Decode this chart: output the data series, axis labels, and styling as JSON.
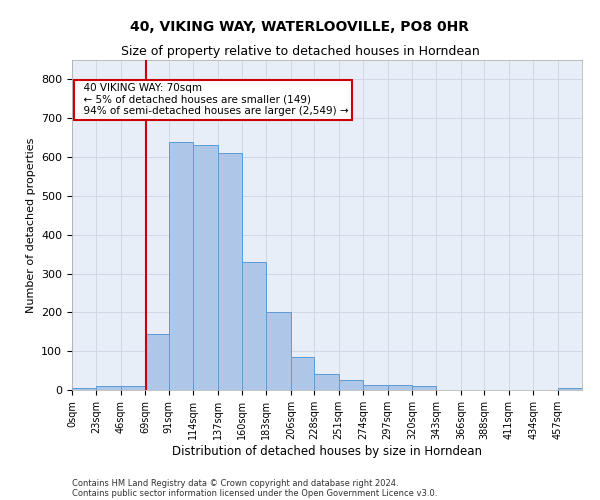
{
  "title": "40, VIKING WAY, WATERLOOVILLE, PO8 0HR",
  "subtitle": "Size of property relative to detached houses in Horndean",
  "xlabel": "Distribution of detached houses by size in Horndean",
  "ylabel": "Number of detached properties",
  "bin_edges": [
    0,
    23,
    46,
    69,
    91,
    114,
    137,
    160,
    183,
    206,
    228,
    251,
    274,
    297,
    320,
    343,
    366,
    388,
    411,
    434,
    457,
    480
  ],
  "bar_heights": [
    5,
    10,
    10,
    143,
    638,
    630,
    610,
    330,
    200,
    85,
    40,
    25,
    12,
    12,
    10,
    0,
    0,
    0,
    0,
    0,
    5
  ],
  "bar_color": "#aec6e8",
  "bar_edge_color": "#5b9bd5",
  "vline_x": 70,
  "vline_color": "#cc0000",
  "annotation_text": "  40 VIKING WAY: 70sqm\n  ← 5% of detached houses are smaller (149)\n  94% of semi-detached houses are larger (2,549) →",
  "annotation_box_color": "#ffffff",
  "annotation_box_edge": "#cc0000",
  "ylim": [
    0,
    850
  ],
  "yticks": [
    0,
    100,
    200,
    300,
    400,
    500,
    600,
    700,
    800
  ],
  "xlim": [
    0,
    480
  ],
  "grid_color": "#d0d8e8",
  "background_color": "#e8eef8",
  "footer_line1": "Contains HM Land Registry data © Crown copyright and database right 2024.",
  "footer_line2": "Contains public sector information licensed under the Open Government Licence v3.0.",
  "title_fontsize": 10,
  "subtitle_fontsize": 9,
  "tick_label_fontsize": 7,
  "ylabel_fontsize": 8,
  "xlabel_fontsize": 8.5,
  "footer_fontsize": 6,
  "annotation_fontsize": 7.5
}
